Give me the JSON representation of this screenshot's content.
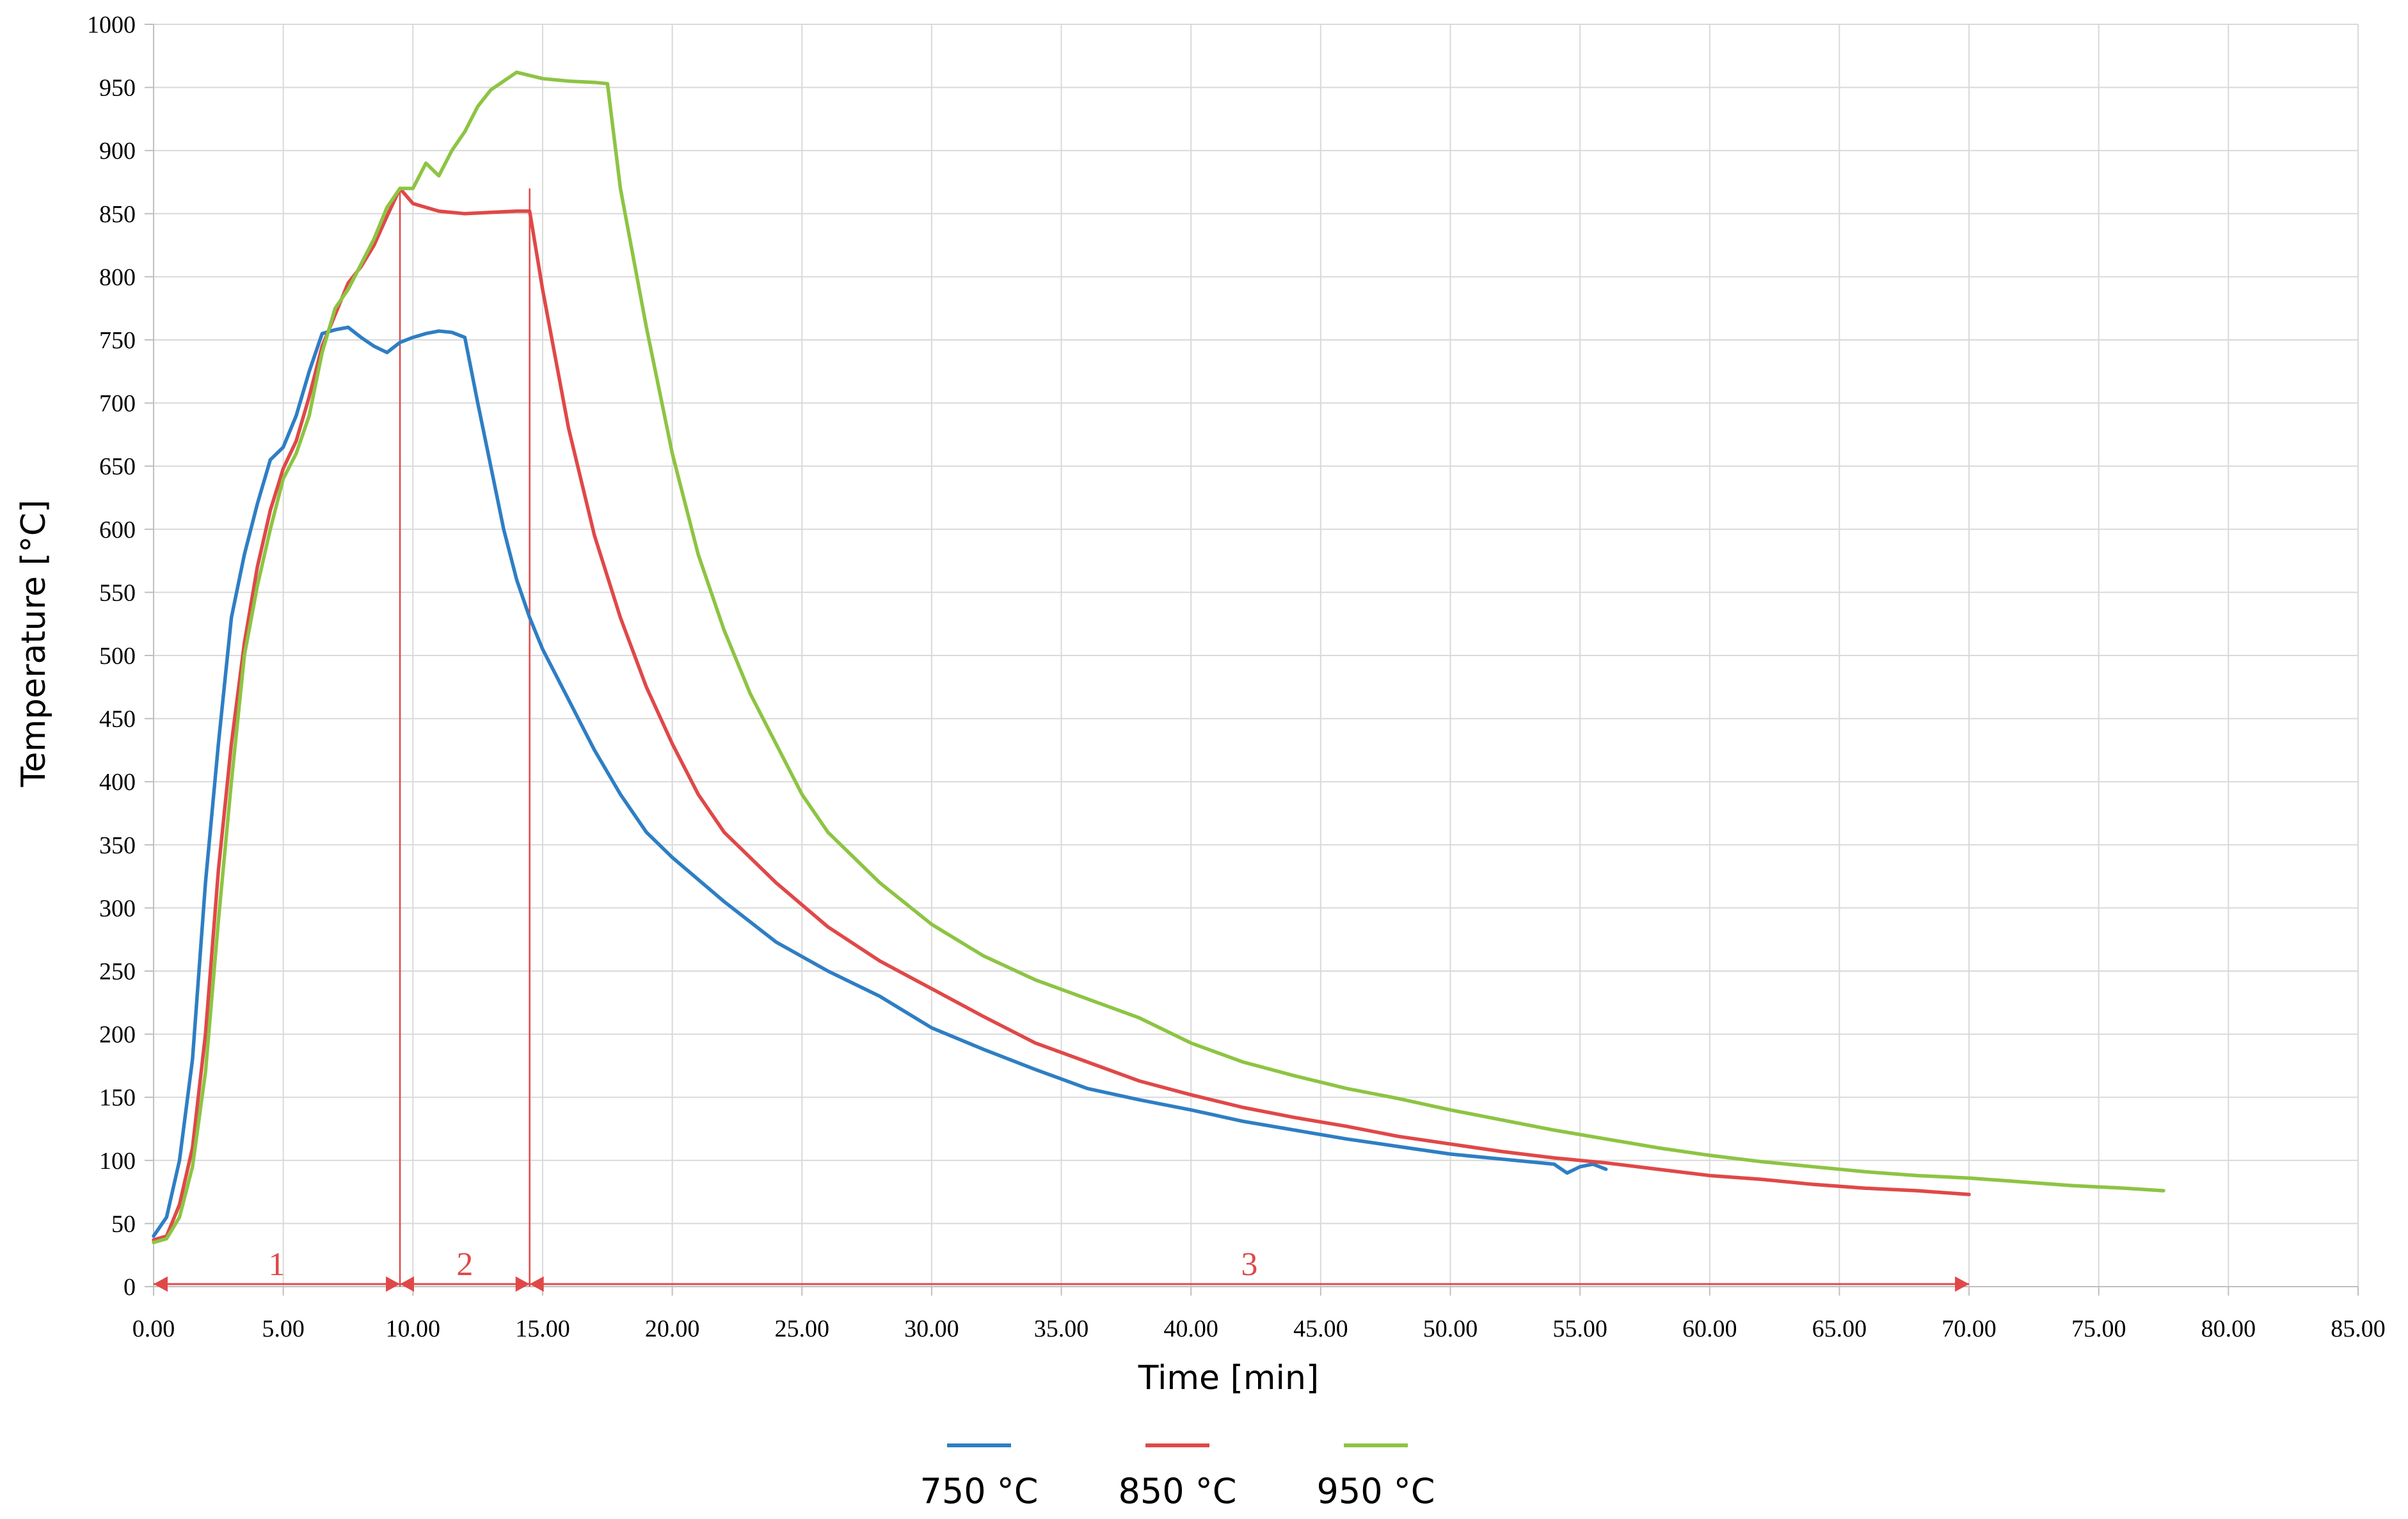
{
  "chart_data": {
    "type": "line",
    "title": "",
    "xlabel": "Time [min]",
    "ylabel": "Temperature [°C]",
    "xlim": [
      0,
      85
    ],
    "ylim": [
      0,
      1000
    ],
    "x_ticks": [
      "0.00",
      "5.00",
      "10.00",
      "15.00",
      "20.00",
      "25.00",
      "30.00",
      "35.00",
      "40.00",
      "45.00",
      "50.00",
      "55.00",
      "60.00",
      "65.00",
      "70.00",
      "75.00",
      "80.00",
      "85.00"
    ],
    "y_ticks": [
      "0",
      "50",
      "100",
      "150",
      "200",
      "250",
      "300",
      "350",
      "400",
      "450",
      "500",
      "550",
      "600",
      "650",
      "700",
      "750",
      "800",
      "850",
      "900",
      "950",
      "1000"
    ],
    "grid": true,
    "legend_position": "bottom",
    "series": [
      {
        "name": "750 °C",
        "color": "#2E7EC4",
        "points": [
          [
            0,
            40
          ],
          [
            0.5,
            55
          ],
          [
            1,
            100
          ],
          [
            1.5,
            180
          ],
          [
            2,
            320
          ],
          [
            2.5,
            430
          ],
          [
            3,
            530
          ],
          [
            3.5,
            580
          ],
          [
            4,
            620
          ],
          [
            4.5,
            655
          ],
          [
            5,
            665
          ],
          [
            5.5,
            690
          ],
          [
            6,
            725
          ],
          [
            6.5,
            755
          ],
          [
            7,
            758
          ],
          [
            7.5,
            760
          ],
          [
            8,
            752
          ],
          [
            8.5,
            745
          ],
          [
            9,
            740
          ],
          [
            9.5,
            748
          ],
          [
            10,
            752
          ],
          [
            10.5,
            755
          ],
          [
            11,
            757
          ],
          [
            11.5,
            756
          ],
          [
            12,
            752
          ],
          [
            12.5,
            700
          ],
          [
            13,
            650
          ],
          [
            13.5,
            600
          ],
          [
            14,
            560
          ],
          [
            14.5,
            530
          ],
          [
            15,
            505
          ],
          [
            16,
            465
          ],
          [
            17,
            425
          ],
          [
            18,
            390
          ],
          [
            19,
            360
          ],
          [
            20,
            340
          ],
          [
            22,
            305
          ],
          [
            24,
            273
          ],
          [
            26,
            250
          ],
          [
            28,
            230
          ],
          [
            30,
            205
          ],
          [
            32,
            188
          ],
          [
            34,
            172
          ],
          [
            36,
            157
          ],
          [
            38,
            148
          ],
          [
            40,
            140
          ],
          [
            42,
            131
          ],
          [
            44,
            124
          ],
          [
            46,
            117
          ],
          [
            48,
            111
          ],
          [
            50,
            105
          ],
          [
            52,
            101
          ],
          [
            54,
            97
          ],
          [
            54.5,
            90
          ],
          [
            55,
            95
          ],
          [
            55.5,
            97
          ],
          [
            56,
            93
          ]
        ]
      },
      {
        "name": "850 °C",
        "color": "#E04848",
        "points": [
          [
            0,
            37
          ],
          [
            0.5,
            40
          ],
          [
            1,
            65
          ],
          [
            1.5,
            110
          ],
          [
            2,
            200
          ],
          [
            2.5,
            330
          ],
          [
            3,
            430
          ],
          [
            3.5,
            510
          ],
          [
            4,
            570
          ],
          [
            4.5,
            615
          ],
          [
            5,
            648
          ],
          [
            5.5,
            670
          ],
          [
            6,
            705
          ],
          [
            6.5,
            745
          ],
          [
            7,
            770
          ],
          [
            7.5,
            795
          ],
          [
            8,
            808
          ],
          [
            8.5,
            825
          ],
          [
            9,
            848
          ],
          [
            9.5,
            870
          ],
          [
            10,
            858
          ],
          [
            11,
            852
          ],
          [
            12,
            850
          ],
          [
            13,
            851
          ],
          [
            14,
            852
          ],
          [
            14.5,
            852
          ],
          [
            15,
            790
          ],
          [
            16,
            680
          ],
          [
            17,
            595
          ],
          [
            18,
            530
          ],
          [
            19,
            475
          ],
          [
            20,
            430
          ],
          [
            21,
            390
          ],
          [
            22,
            360
          ],
          [
            24,
            320
          ],
          [
            26,
            285
          ],
          [
            28,
            258
          ],
          [
            30,
            236
          ],
          [
            32,
            214
          ],
          [
            34,
            193
          ],
          [
            36,
            178
          ],
          [
            38,
            163
          ],
          [
            40,
            152
          ],
          [
            42,
            142
          ],
          [
            44,
            134
          ],
          [
            46,
            127
          ],
          [
            48,
            119
          ],
          [
            50,
            113
          ],
          [
            52,
            107
          ],
          [
            54,
            102
          ],
          [
            56,
            98
          ],
          [
            58,
            93
          ],
          [
            60,
            88
          ],
          [
            62,
            85
          ],
          [
            64,
            81
          ],
          [
            66,
            78
          ],
          [
            68,
            76
          ],
          [
            70,
            73
          ]
        ]
      },
      {
        "name": "950 °C",
        "color": "#8DC443",
        "points": [
          [
            0,
            35
          ],
          [
            0.5,
            38
          ],
          [
            1,
            55
          ],
          [
            1.5,
            95
          ],
          [
            2,
            170
          ],
          [
            2.5,
            290
          ],
          [
            3,
            400
          ],
          [
            3.5,
            500
          ],
          [
            4,
            555
          ],
          [
            4.5,
            600
          ],
          [
            5,
            640
          ],
          [
            5.5,
            660
          ],
          [
            6,
            690
          ],
          [
            6.5,
            740
          ],
          [
            7,
            775
          ],
          [
            7.5,
            790
          ],
          [
            8,
            810
          ],
          [
            8.5,
            830
          ],
          [
            9,
            855
          ],
          [
            9.5,
            870
          ],
          [
            10,
            870
          ],
          [
            10.5,
            890
          ],
          [
            11,
            880
          ],
          [
            11.5,
            900
          ],
          [
            12,
            915
          ],
          [
            12.5,
            935
          ],
          [
            13,
            948
          ],
          [
            13.5,
            955
          ],
          [
            14,
            962
          ],
          [
            15,
            957
          ],
          [
            16,
            955
          ],
          [
            17,
            954
          ],
          [
            17.5,
            953
          ],
          [
            18,
            870
          ],
          [
            19,
            760
          ],
          [
            20,
            660
          ],
          [
            21,
            580
          ],
          [
            22,
            520
          ],
          [
            23,
            470
          ],
          [
            24,
            430
          ],
          [
            25,
            390
          ],
          [
            26,
            360
          ],
          [
            28,
            320
          ],
          [
            30,
            287
          ],
          [
            32,
            262
          ],
          [
            34,
            243
          ],
          [
            36,
            228
          ],
          [
            38,
            213
          ],
          [
            40,
            193
          ],
          [
            42,
            178
          ],
          [
            44,
            167
          ],
          [
            46,
            157
          ],
          [
            48,
            149
          ],
          [
            50,
            140
          ],
          [
            52,
            132
          ],
          [
            54,
            124
          ],
          [
            56,
            117
          ],
          [
            58,
            110
          ],
          [
            60,
            104
          ],
          [
            62,
            99
          ],
          [
            64,
            95
          ],
          [
            66,
            91
          ],
          [
            68,
            88
          ],
          [
            70,
            86
          ],
          [
            72,
            83
          ],
          [
            74,
            80
          ],
          [
            76,
            78
          ],
          [
            77.5,
            76
          ]
        ]
      }
    ],
    "annotations": {
      "color": "#E04848",
      "vertical_lines": [
        9.5,
        14.5
      ],
      "phase_arrows": [
        {
          "label": "1",
          "from": 0,
          "to": 9.5
        },
        {
          "label": "2",
          "from": 9.5,
          "to": 14.5
        },
        {
          "label": "3",
          "from": 14.5,
          "to": 70
        }
      ]
    }
  }
}
